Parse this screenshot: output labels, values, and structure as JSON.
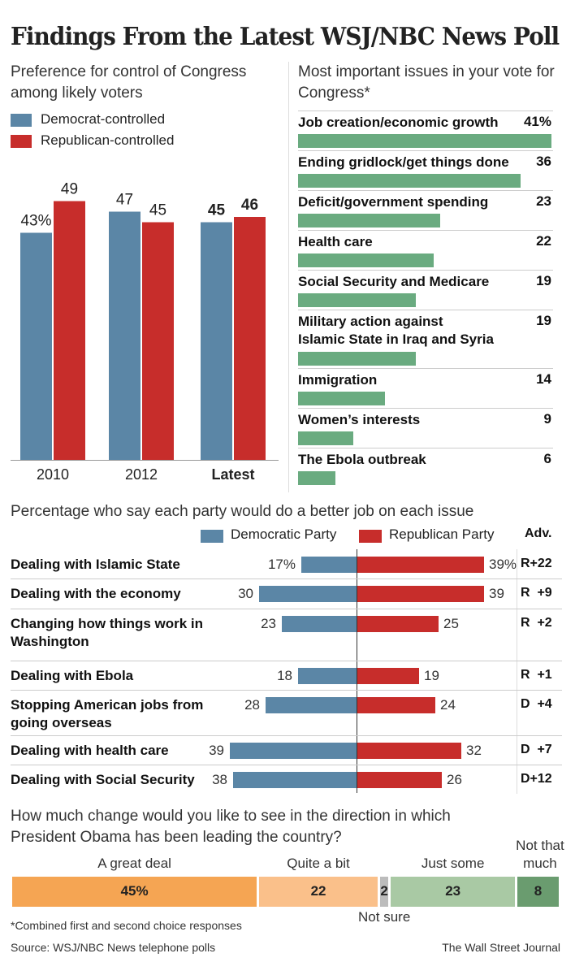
{
  "title": "Findings From the Latest WSJ/NBC News Poll",
  "colors": {
    "democrat": "#5b86a6",
    "republican": "#c72d2b",
    "issues": "#6aab80",
    "great_deal": "#f5a553",
    "quite_a_bit": "#fac08a",
    "not_sure": "#bcbcbc",
    "just_some": "#a9c9a4",
    "not_that_much": "#6a9c6f"
  },
  "chart_data": [
    {
      "type": "bar",
      "title": "Preference for control of Congress among likely voters",
      "categories": [
        "2010",
        "2012",
        "Latest"
      ],
      "series": [
        {
          "name": "Democrat-controlled",
          "values": [
            43,
            47,
            45
          ],
          "labels": [
            "43%",
            "47",
            "45"
          ]
        },
        {
          "name": "Republican-controlled",
          "values": [
            49,
            45,
            46
          ],
          "labels": [
            "49",
            "45",
            "46"
          ]
        }
      ],
      "ylim": [
        0,
        52
      ],
      "legend": "top-left"
    },
    {
      "type": "bar",
      "orientation": "horizontal",
      "title": "Most important issues in your vote for Congress*",
      "categories": [
        "Job creation/economic growth",
        "Ending gridlock/get things done",
        "Deficit/government spending",
        "Health care",
        "Social Security and Medicare",
        "Military action against Islamic State in Iraq and Syria",
        "Immigration",
        "Women’s interests",
        "The Ebola outbreak"
      ],
      "values": [
        41,
        36,
        23,
        22,
        19,
        19,
        14,
        9,
        6
      ],
      "labels": [
        "41%",
        "36",
        "23",
        "22",
        "19",
        "19",
        "14",
        "9",
        "6"
      ],
      "xlim": [
        0,
        41
      ]
    },
    {
      "type": "bar",
      "orientation": "diverging",
      "title": "Percentage who say each party would do a better job on each issue",
      "categories": [
        "Dealing with Islamic State",
        "Dealing with the economy",
        "Changing how things work in Washington",
        "Dealing with Ebola",
        "Stopping American jobs from going overseas",
        "Dealing with health care",
        "Dealing with Social Security"
      ],
      "series": [
        {
          "name": "Democratic Party",
          "values": [
            17,
            30,
            23,
            18,
            28,
            39,
            38
          ],
          "labels": [
            "17%",
            "30",
            "23",
            "18",
            "28",
            "39",
            "38"
          ]
        },
        {
          "name": "Republican Party",
          "values": [
            39,
            39,
            25,
            19,
            24,
            32,
            26
          ],
          "labels": [
            "39%",
            "39",
            "25",
            "19",
            "24",
            "32",
            "26"
          ]
        }
      ],
      "advantage_header": "Adv.",
      "advantage": [
        "R+22",
        "R  +9",
        "R  +2",
        "R  +1",
        "D  +4",
        "D  +7",
        "D+12"
      ]
    },
    {
      "type": "bar",
      "orientation": "stacked-horizontal",
      "title": "How much change would you like to see in the direction in which President Obama has been leading the country?",
      "categories": [
        "A great deal",
        "Quite a bit",
        "Not sure",
        "Just some",
        "Not that much"
      ],
      "values": [
        45,
        22,
        2,
        23,
        8
      ],
      "labels": [
        "45%",
        "22",
        "2",
        "23",
        "8"
      ]
    }
  ],
  "footnote": "*Combined first and second choice responses",
  "source": "Source: WSJ/NBC News telephone polls",
  "credit": "The Wall Street Journal"
}
